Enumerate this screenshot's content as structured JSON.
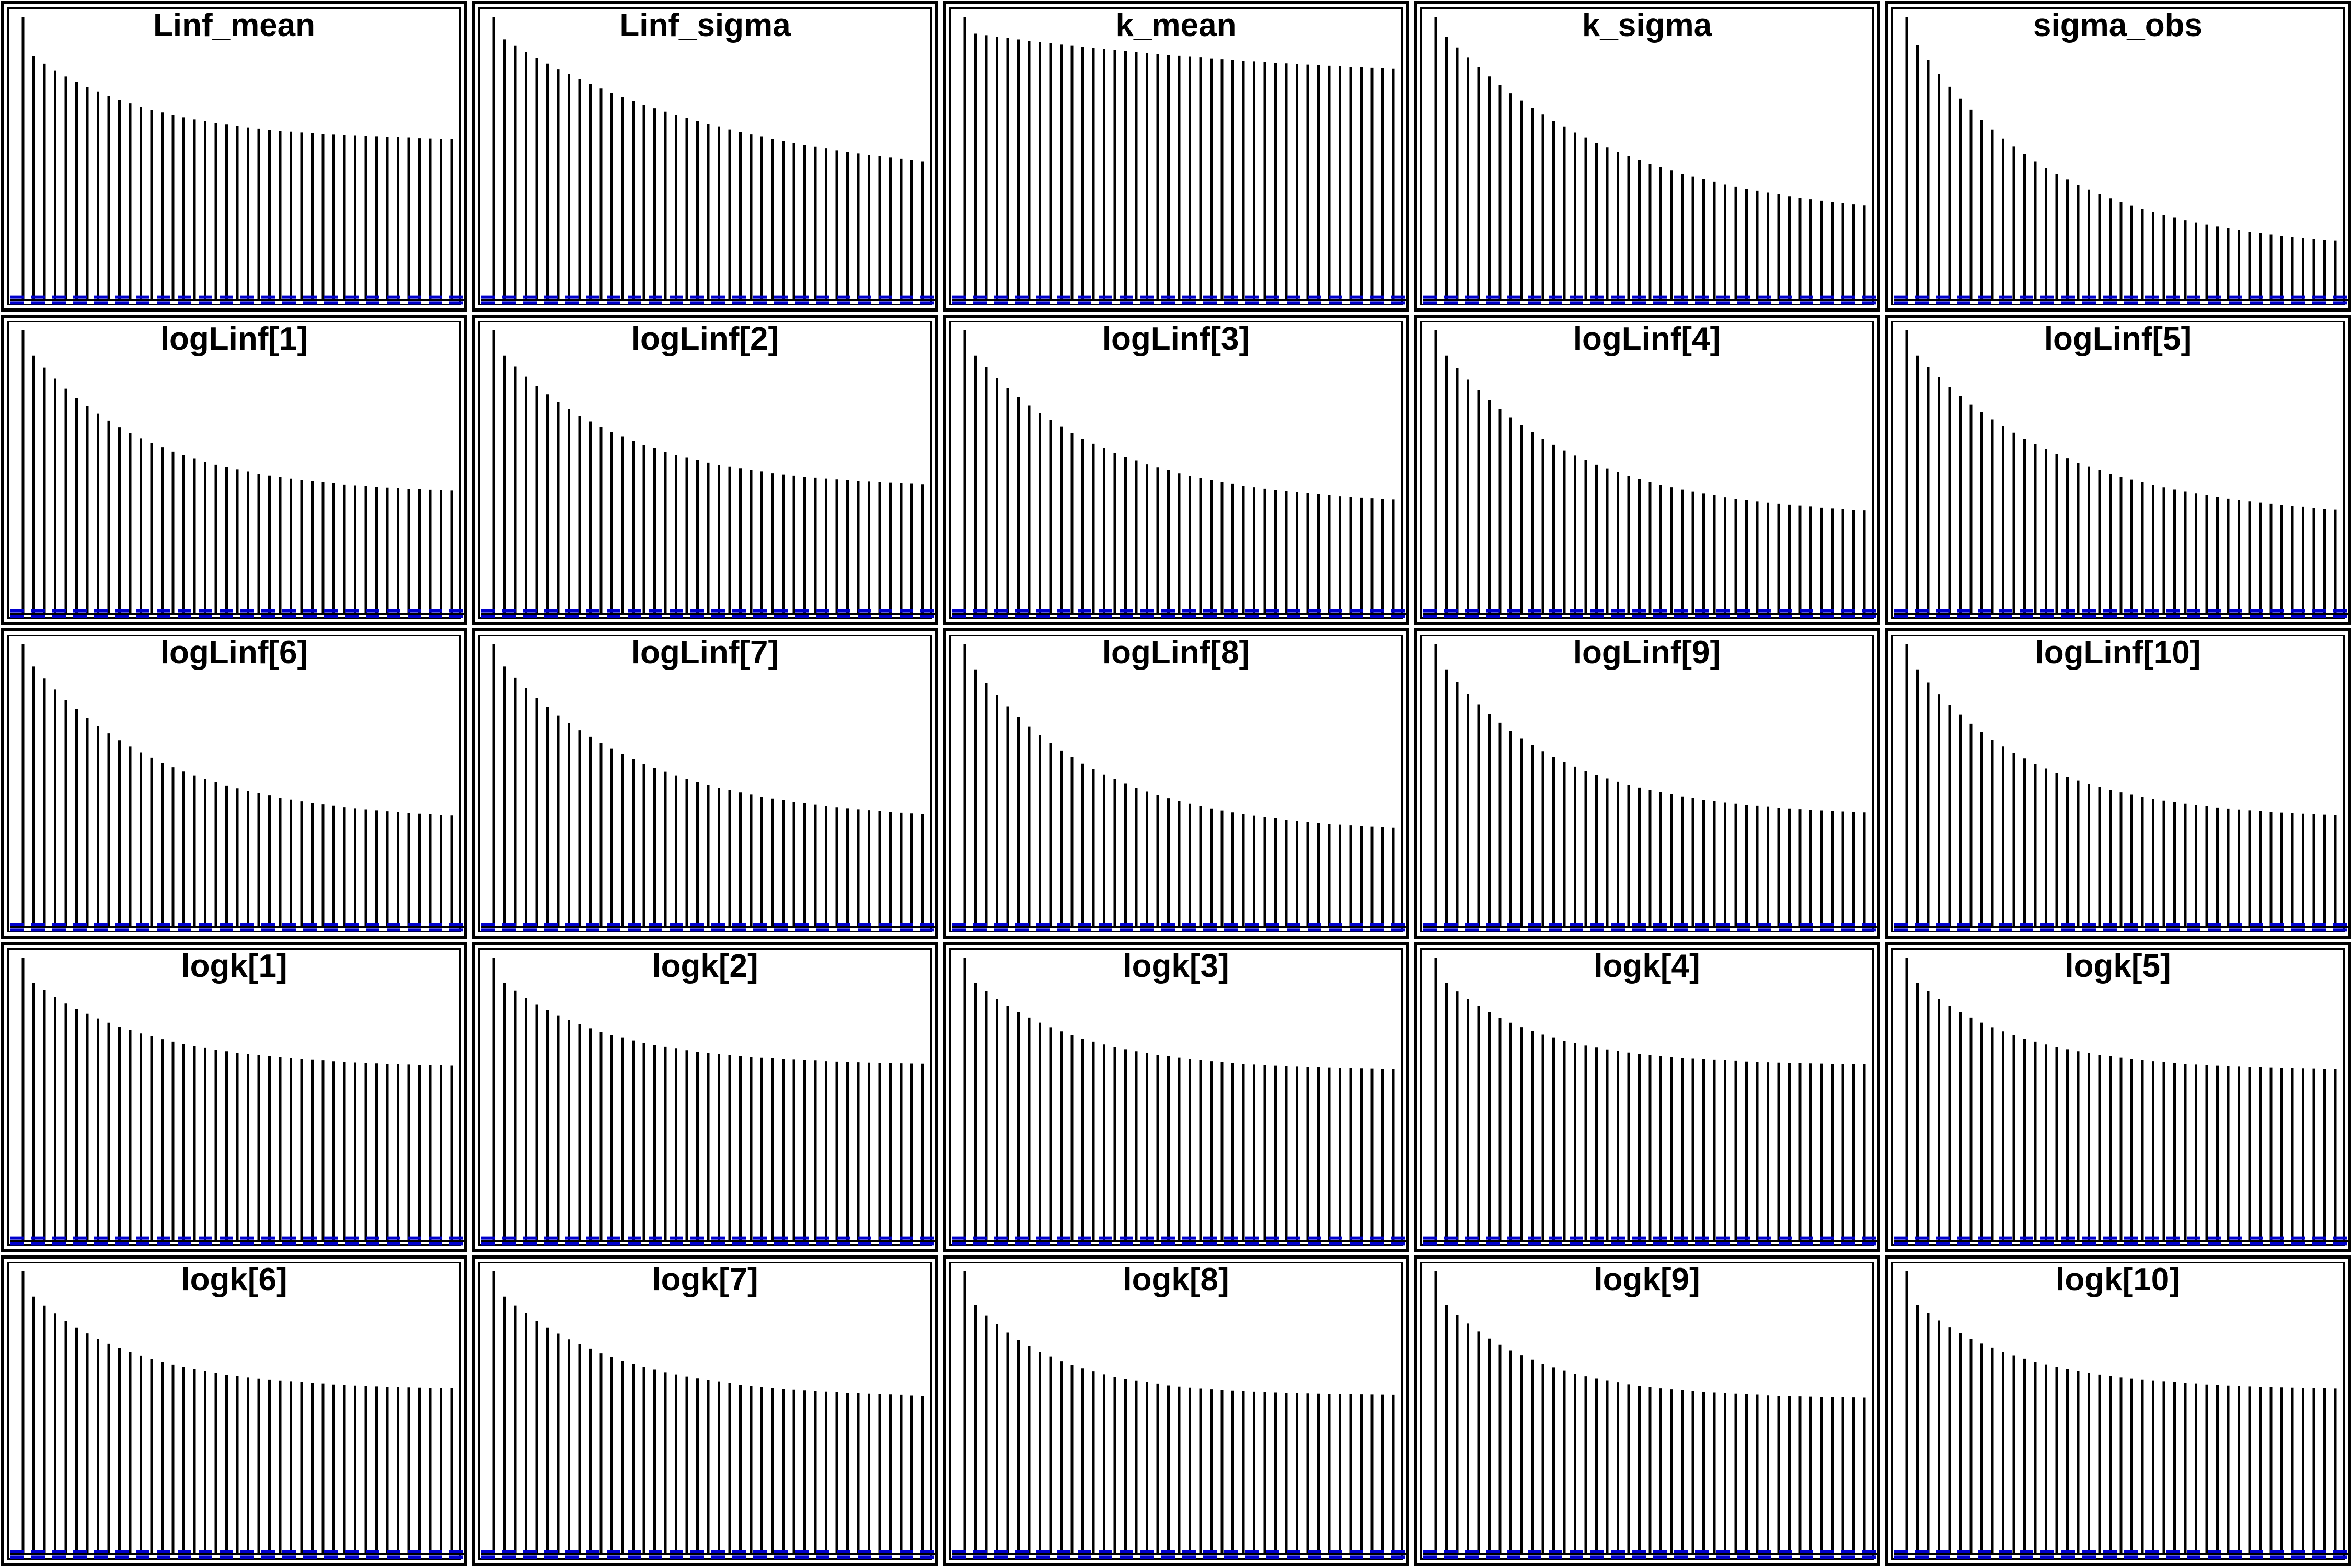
{
  "figure": {
    "colors": {
      "bar": "#000000",
      "confidence_band": "#0000CD",
      "frame": "#000000"
    }
  },
  "chart_data": [
    {
      "type": "bar",
      "title": "Linf_mean",
      "x": [
        0,
        1,
        2,
        3,
        4,
        5,
        6,
        7,
        8,
        9,
        10,
        11,
        12,
        13,
        13,
        14,
        15,
        16,
        17,
        18,
        19,
        20,
        21,
        22,
        23,
        24,
        25,
        26,
        27,
        28,
        29,
        30,
        31,
        32,
        33,
        34,
        35,
        36,
        37,
        38,
        39,
        40
      ],
      "lag0": 1.0,
      "lag1": 0.86,
      "tail": 0.56,
      "decay": 0.09,
      "ci": 0.01
    },
    {
      "type": "bar",
      "title": "Linf_sigma",
      "lag0": 1.0,
      "lag1": 0.92,
      "tail": 0.4,
      "decay": 0.045,
      "ci": 0.01
    },
    {
      "type": "bar",
      "title": "k_mean",
      "lag0": 1.0,
      "lag1": 0.94,
      "tail": 0.76,
      "decay": 0.03,
      "ci": 0.01
    },
    {
      "type": "bar",
      "title": "k_sigma",
      "lag0": 1.0,
      "lag1": 0.93,
      "tail": 0.27,
      "decay": 0.06,
      "ci": 0.01
    },
    {
      "type": "bar",
      "title": "sigma_obs",
      "lag0": 1.0,
      "lag1": 0.9,
      "tail": 0.17,
      "decay": 0.075,
      "ci": 0.01
    },
    {
      "type": "bar",
      "title": "logLinf[1]",
      "lag0": 1.0,
      "lag1": 0.91,
      "tail": 0.42,
      "decay": 0.09,
      "ci": 0.01
    },
    {
      "type": "bar",
      "title": "logLinf[2]",
      "lag0": 1.0,
      "lag1": 0.91,
      "tail": 0.44,
      "decay": 0.085,
      "ci": 0.01
    },
    {
      "type": "bar",
      "title": "logLinf[3]",
      "lag0": 1.0,
      "lag1": 0.91,
      "tail": 0.38,
      "decay": 0.08,
      "ci": 0.01
    },
    {
      "type": "bar",
      "title": "logLinf[4]",
      "lag0": 1.0,
      "lag1": 0.91,
      "tail": 0.34,
      "decay": 0.08,
      "ci": 0.01
    },
    {
      "type": "bar",
      "title": "logLinf[5]",
      "lag0": 1.0,
      "lag1": 0.91,
      "tail": 0.33,
      "decay": 0.07,
      "ci": 0.01
    },
    {
      "type": "bar",
      "title": "logLinf[6]",
      "lag0": 1.0,
      "lag1": 0.92,
      "tail": 0.37,
      "decay": 0.08,
      "ci": 0.01
    },
    {
      "type": "bar",
      "title": "logLinf[7]",
      "lag0": 1.0,
      "lag1": 0.92,
      "tail": 0.37,
      "decay": 0.075,
      "ci": 0.01
    },
    {
      "type": "bar",
      "title": "logLinf[8]",
      "lag0": 1.0,
      "lag1": 0.91,
      "tail": 0.33,
      "decay": 0.085,
      "ci": 0.01
    },
    {
      "type": "bar",
      "title": "logLinf[9]",
      "lag0": 1.0,
      "lag1": 0.91,
      "tail": 0.39,
      "decay": 0.09,
      "ci": 0.01
    },
    {
      "type": "bar",
      "title": "logLinf[10]",
      "lag0": 1.0,
      "lag1": 0.91,
      "tail": 0.38,
      "decay": 0.09,
      "ci": 0.01
    },
    {
      "type": "bar",
      "title": "logk[1]",
      "lag0": 1.0,
      "lag1": 0.91,
      "tail": 0.61,
      "decay": 0.09,
      "ci": 0.01
    },
    {
      "type": "bar",
      "title": "logk[2]",
      "lag0": 1.0,
      "lag1": 0.91,
      "tail": 0.62,
      "decay": 0.1,
      "ci": 0.01
    },
    {
      "type": "bar",
      "title": "logk[3]",
      "lag0": 1.0,
      "lag1": 0.91,
      "tail": 0.6,
      "decay": 0.1,
      "ci": 0.01
    },
    {
      "type": "bar",
      "title": "logk[4]",
      "lag0": 1.0,
      "lag1": 0.91,
      "tail": 0.62,
      "decay": 0.11,
      "ci": 0.01
    },
    {
      "type": "bar",
      "title": "logk[5]",
      "lag0": 1.0,
      "lag1": 0.91,
      "tail": 0.6,
      "decay": 0.1,
      "ci": 0.01
    },
    {
      "type": "bar",
      "title": "logk[6]",
      "lag0": 1.0,
      "lag1": 0.91,
      "tail": 0.58,
      "decay": 0.1,
      "ci": 0.01
    },
    {
      "type": "bar",
      "title": "logk[7]",
      "lag0": 1.0,
      "lag1": 0.91,
      "tail": 0.55,
      "decay": 0.09,
      "ci": 0.01
    },
    {
      "type": "bar",
      "title": "logk[8]",
      "lag0": 1.0,
      "lag1": 0.88,
      "tail": 0.56,
      "decay": 0.12,
      "ci": 0.01
    },
    {
      "type": "bar",
      "title": "logk[9]",
      "lag0": 1.0,
      "lag1": 0.88,
      "tail": 0.55,
      "decay": 0.11,
      "ci": 0.01
    },
    {
      "type": "bar",
      "title": "logk[10]",
      "lag0": 1.0,
      "lag1": 0.88,
      "tail": 0.58,
      "decay": 0.1,
      "ci": 0.01
    }
  ]
}
